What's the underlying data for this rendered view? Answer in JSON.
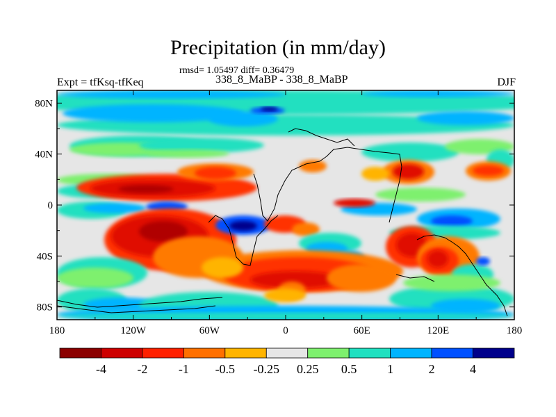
{
  "title": "Precipitation (in mm/day)",
  "stats": "rmsd= 1.05497 diff= 0.36479",
  "label_left": "Expt = tfKsq-tfKeq",
  "label_center": "338_8_MaBP - 338_8_MaBP",
  "label_right": "DJF",
  "axes": {
    "x_ticks": [
      {
        "value": -180,
        "label": "180"
      },
      {
        "value": -120,
        "label": "120W"
      },
      {
        "value": -60,
        "label": "60W"
      },
      {
        "value": 0,
        "label": "0"
      },
      {
        "value": 60,
        "label": "60E"
      },
      {
        "value": 120,
        "label": "120E"
      },
      {
        "value": 180,
        "label": "180"
      }
    ],
    "y_ticks": [
      {
        "value": 80,
        "label": "80N"
      },
      {
        "value": 40,
        "label": "40N"
      },
      {
        "value": 0,
        "label": "0"
      },
      {
        "value": -40,
        "label": "40S"
      },
      {
        "value": -80,
        "label": "80S"
      }
    ],
    "lon_range": [
      -180,
      180
    ],
    "lat_range": [
      -90,
      90
    ]
  },
  "colorbar": {
    "colors": [
      "#8b0000",
      "#cd0000",
      "#ff2000",
      "#ff7000",
      "#ffb400",
      "#e6e6e6",
      "#7ef06e",
      "#20e0c0",
      "#00b4ff",
      "#0050ff",
      "#00008b"
    ],
    "labels": [
      "-4",
      "-2",
      "-1",
      "-0.5",
      "-0.25",
      "0.25",
      "0.5",
      "1",
      "2",
      "4"
    ]
  },
  "field": {
    "background_color": "#e6e6e6",
    "colors": {
      "dark_red": "#b00000",
      "red": "#e00a00",
      "red_orange": "#ff3200",
      "orange": "#ff7a00",
      "yellow_orange": "#ffb400",
      "gray": "#e6e6e6",
      "green": "#7ef06e",
      "cyan": "#20e0c0",
      "light_blue": "#00b4ff",
      "blue": "#0050ff",
      "navy": "#00008b"
    }
  }
}
